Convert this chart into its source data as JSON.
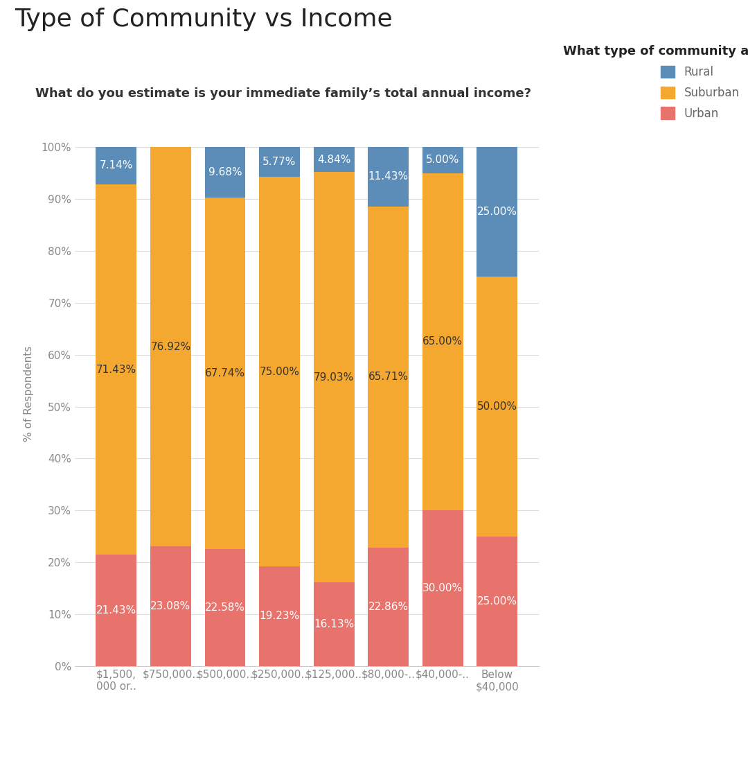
{
  "title": "Type of Community vs Income",
  "subtitle": "What do you estimate is your immediate family’s total annual income?",
  "legend_title": "What type of community are you from?",
  "ylabel": "% of Respondents",
  "categories": [
    "$1,500,\n000 or..",
    "$750,000..",
    "$500,000..",
    "$250,000..",
    "$125,000..",
    "$80,000-..",
    "$40,000-..",
    "Below\n$40,000"
  ],
  "urban": [
    21.43,
    23.08,
    22.58,
    19.23,
    16.13,
    22.86,
    30.0,
    25.0
  ],
  "suburban": [
    71.43,
    76.92,
    67.74,
    75.0,
    79.03,
    65.71,
    65.0,
    50.0
  ],
  "rural": [
    7.14,
    0.0,
    9.68,
    5.77,
    4.84,
    11.43,
    5.0,
    25.0
  ],
  "urban_color": "#E8736C",
  "suburban_color": "#F5A830",
  "rural_color": "#5B8DB8",
  "background_color": "#FFFFFF",
  "title_fontsize": 26,
  "subtitle_fontsize": 13,
  "bar_label_fontsize": 11,
  "tick_fontsize": 11,
  "ylabel_fontsize": 11,
  "legend_title_fontsize": 13,
  "legend_fontsize": 12
}
